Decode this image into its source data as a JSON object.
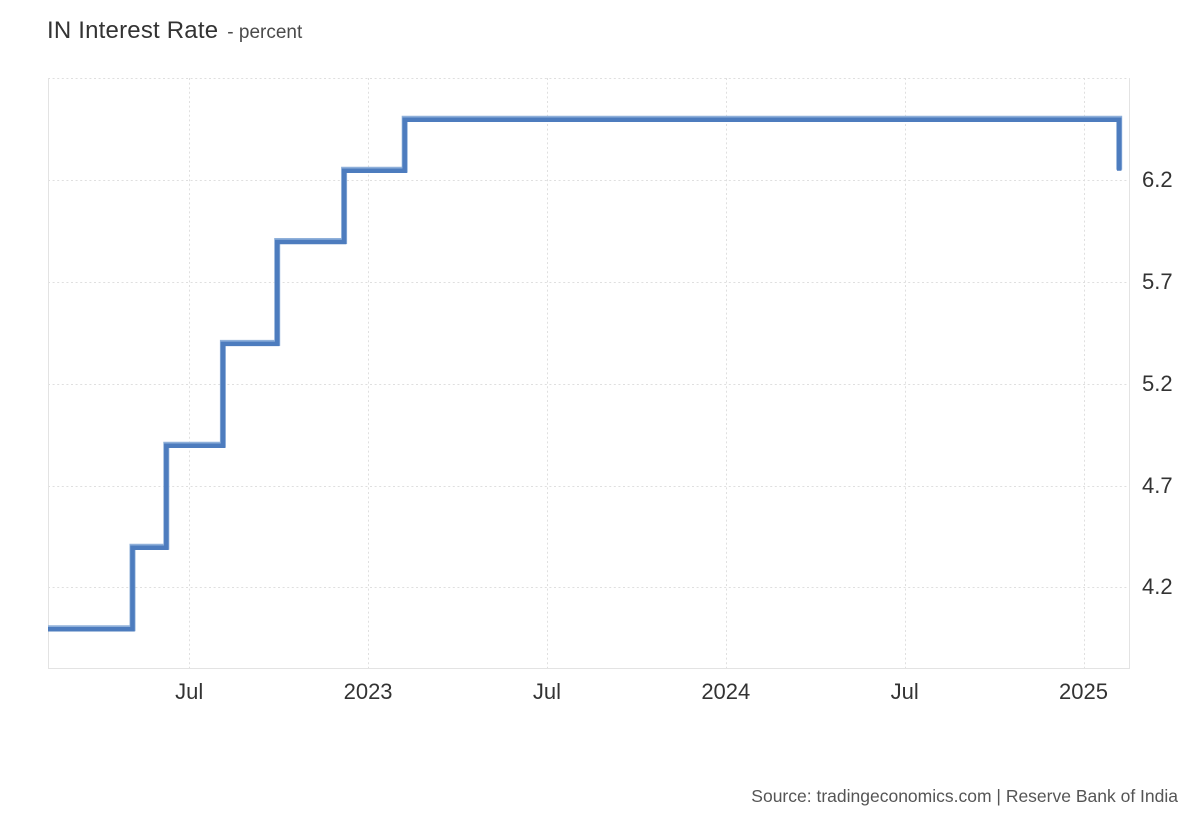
{
  "header": {
    "title": "IN Interest Rate",
    "subtitle": "- percent"
  },
  "footer": {
    "source": "Source: tradingeconomics.com | Reserve Bank of India"
  },
  "chart_data": {
    "type": "line",
    "step": true,
    "title": "IN Interest Rate - percent",
    "series": [
      {
        "name": "IN Interest Rate",
        "points": [
          {
            "date": "2022-02-09",
            "value": 4.0
          },
          {
            "date": "2022-05-04",
            "value": 4.4
          },
          {
            "date": "2022-06-08",
            "value": 4.9
          },
          {
            "date": "2022-08-05",
            "value": 5.4
          },
          {
            "date": "2022-09-30",
            "value": 5.9
          },
          {
            "date": "2022-12-07",
            "value": 6.25
          },
          {
            "date": "2023-02-08",
            "value": 6.5
          },
          {
            "date": "2025-02-07",
            "value": 6.25
          }
        ]
      }
    ],
    "x_axis": {
      "range": [
        "2022-02-09",
        "2025-02-18"
      ],
      "ticks": [
        {
          "date": "2022-07-01",
          "label": "Jul"
        },
        {
          "date": "2023-01-01",
          "label": "2023"
        },
        {
          "date": "2023-07-01",
          "label": "Jul"
        },
        {
          "date": "2024-01-01",
          "label": "2024"
        },
        {
          "date": "2024-07-01",
          "label": "Jul"
        },
        {
          "date": "2025-01-01",
          "label": "2025"
        }
      ]
    },
    "y_axis": {
      "side": "right",
      "range": [
        3.8,
        6.7
      ],
      "ticks": [
        {
          "value": 6.2,
          "label": "6.2"
        },
        {
          "value": 5.7,
          "label": "5.7"
        },
        {
          "value": 5.2,
          "label": "5.2"
        },
        {
          "value": 4.7,
          "label": "4.7"
        },
        {
          "value": 4.2,
          "label": "4.2"
        }
      ],
      "grid_extra": [
        6.7
      ]
    },
    "grid_style": "dotted",
    "colors": {
      "line": "#4d7cbe",
      "line_highlight": "#8fb0da",
      "grid": "#dfdfdf",
      "border": "#e3e3e3",
      "tick_text": "#333333"
    }
  }
}
